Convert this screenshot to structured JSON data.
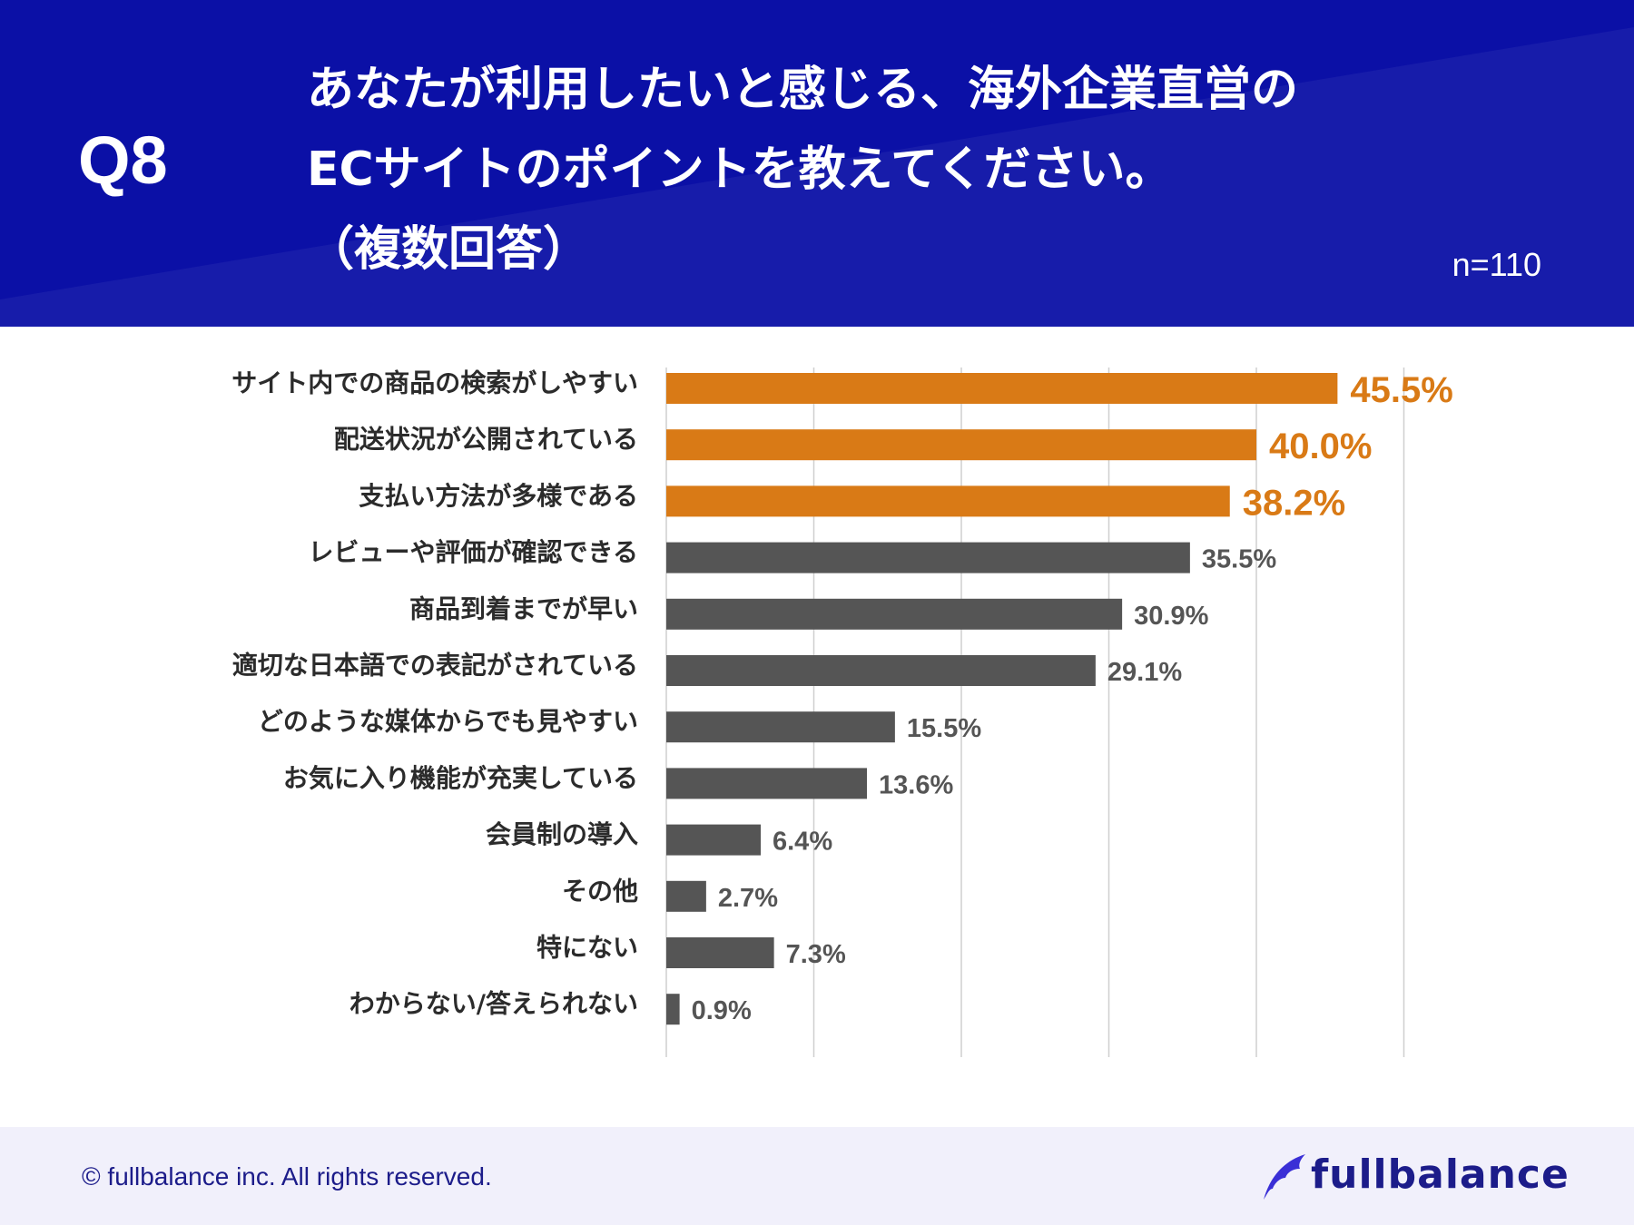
{
  "header": {
    "question_label": "Q8",
    "title_lines": [
      "あなたが利用したいと感じる、海外企業直営の",
      "ECサイトのポイントを教えてください。",
      "（複数回答）"
    ],
    "sample_size": "n=110"
  },
  "colors": {
    "header_bg": "#0b10a6",
    "highlight": "#d97a16",
    "bar": "#555555",
    "grid": "#cfcfcf",
    "footer_bg": "#f1f0fb",
    "brand": "#1c1c8a"
  },
  "chart_data": {
    "type": "bar",
    "orientation": "horizontal",
    "title": "あなたが利用したいと感じる、海外企業直営のECサイトのポイントを教えてください。（複数回答）",
    "xlabel": "",
    "ylabel": "",
    "xlim": [
      0,
      50
    ],
    "gridlines": [
      0,
      10,
      20,
      30,
      40,
      50
    ],
    "unit": "%",
    "categories": [
      "サイト内での商品の検索がしやすい",
      "配送状況が公開されている",
      "支払い方法が多様である",
      "レビューや評価が確認できる",
      "商品到着までが早い",
      "適切な日本語での表記がされている",
      "どのような媒体からでも見やすい",
      "お気に入り機能が充実している",
      "会員制の導入",
      "その他",
      "特にない",
      "わからない/答えられない"
    ],
    "values": [
      45.5,
      40.0,
      38.2,
      35.5,
      30.9,
      29.1,
      15.5,
      13.6,
      6.4,
      2.7,
      7.3,
      0.9
    ],
    "value_labels": [
      "45.5%",
      "40.0%",
      "38.2%",
      "35.5%",
      "30.9%",
      "29.1%",
      "15.5%",
      "13.6%",
      "6.4%",
      "2.7%",
      "7.3%",
      "0.9%"
    ],
    "highlighted_top_n": 3
  },
  "footer": {
    "copyright": "© fullbalance inc. All rights reserved.",
    "brand": "fullbalance"
  }
}
